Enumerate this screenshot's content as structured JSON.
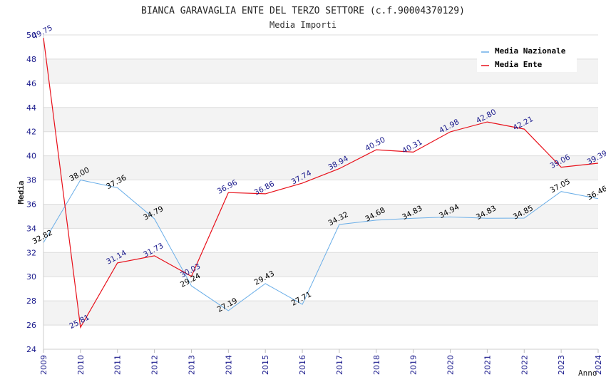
{
  "chart_data": {
    "type": "line",
    "title": "BIANCA GARAVAGLIA ENTE DEL TERZO SETTORE (c.f.90004370129)",
    "subtitle": "Media Importi",
    "xlabel": "Anno",
    "ylabel": "Media",
    "ylim": [
      24,
      50
    ],
    "yticks": [
      24,
      26,
      28,
      30,
      32,
      34,
      36,
      38,
      40,
      42,
      44,
      46,
      48,
      50
    ],
    "x": [
      2009,
      2010,
      2011,
      2012,
      2013,
      2014,
      2015,
      2016,
      2017,
      2018,
      2019,
      2020,
      2021,
      2022,
      2023,
      2024
    ],
    "grid": true,
    "legend_position": "top-right",
    "series": [
      {
        "name": "Media Nazionale",
        "color": "#6aaee8",
        "label_color": "#000000",
        "values": [
          32.82,
          38.0,
          37.36,
          34.79,
          29.24,
          27.19,
          29.43,
          27.71,
          34.32,
          34.68,
          34.83,
          34.94,
          34.83,
          34.85,
          37.05,
          36.46
        ],
        "labels": [
          "32.82",
          "38.00",
          "37.36",
          "34.79",
          "29.24",
          "27.19",
          "29.43",
          "27.71",
          "34.32",
          "34.68",
          "34.83",
          "34.94",
          "34.83",
          "34.85",
          "37.05",
          "36.46"
        ]
      },
      {
        "name": "Media Ente",
        "color": "#e8101a",
        "label_color": "#1a1a8c",
        "values": [
          49.75,
          25.81,
          31.14,
          31.73,
          30.03,
          36.96,
          36.86,
          37.74,
          38.94,
          40.5,
          40.31,
          41.98,
          42.8,
          42.21,
          39.06,
          39.39
        ],
        "labels": [
          "49.75",
          "25.81",
          "31.14",
          "31.73",
          "30.03",
          "36.96",
          "36.86",
          "37.74",
          "38.94",
          "40.50",
          "40.31",
          "41.98",
          "42.80",
          "42.21",
          "39.06",
          "39.39"
        ]
      }
    ]
  }
}
